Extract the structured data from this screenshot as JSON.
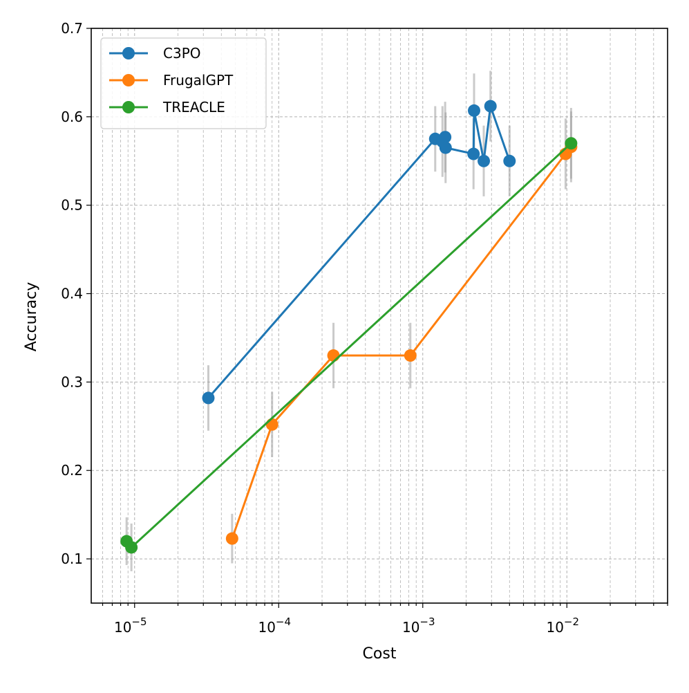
{
  "chart_data": {
    "type": "line",
    "title": "",
    "xlabel": "Cost",
    "ylabel": "Accuracy",
    "xscale": "log",
    "xlim": [
      5e-06,
      0.05
    ],
    "ylim": [
      0.05,
      0.7
    ],
    "grid": true,
    "legend_position": "top-left",
    "x_ticks": [
      {
        "value": 1e-05,
        "base": "10",
        "exp": "−5"
      },
      {
        "value": 0.0001,
        "base": "10",
        "exp": "−4"
      },
      {
        "value": 0.001,
        "base": "10",
        "exp": "−3"
      },
      {
        "value": 0.01,
        "base": "10",
        "exp": "−2"
      }
    ],
    "y_ticks": [
      {
        "value": 0.1,
        "label": "0.1"
      },
      {
        "value": 0.2,
        "label": "0.2"
      },
      {
        "value": 0.3,
        "label": "0.3"
      },
      {
        "value": 0.4,
        "label": "0.4"
      },
      {
        "value": 0.5,
        "label": "0.5"
      },
      {
        "value": 0.6,
        "label": "0.6"
      },
      {
        "value": 0.7,
        "label": "0.7"
      }
    ],
    "series": [
      {
        "name": "C3PO",
        "color": "#1f77b4",
        "points": [
          {
            "x": 3.25e-05,
            "y": 0.282,
            "err": 0.037
          },
          {
            "x": 0.00122,
            "y": 0.575,
            "err": 0.037
          },
          {
            "x": 0.00137,
            "y": 0.572,
            "err": 0.04
          },
          {
            "x": 0.00143,
            "y": 0.577,
            "err": 0.04
          },
          {
            "x": 0.00144,
            "y": 0.565,
            "err": 0.04
          },
          {
            "x": 0.00225,
            "y": 0.558,
            "err": 0.04
          },
          {
            "x": 0.00227,
            "y": 0.607,
            "err": 0.042
          },
          {
            "x": 0.00265,
            "y": 0.55,
            "err": 0.04
          },
          {
            "x": 0.00295,
            "y": 0.612,
            "err": 0.04
          },
          {
            "x": 0.004,
            "y": 0.55,
            "err": 0.04
          }
        ]
      },
      {
        "name": "FrugalGPT",
        "color": "#ff7f0e",
        "points": [
          {
            "x": 4.75e-05,
            "y": 0.123,
            "err": 0.028
          },
          {
            "x": 9e-05,
            "y": 0.252,
            "err": 0.037
          },
          {
            "x": 0.00024,
            "y": 0.33,
            "err": 0.037
          },
          {
            "x": 0.00082,
            "y": 0.33,
            "err": 0.037
          },
          {
            "x": 0.0098,
            "y": 0.558,
            "err": 0.04
          },
          {
            "x": 0.0107,
            "y": 0.566,
            "err": 0.04
          }
        ]
      },
      {
        "name": "TREACLE",
        "color": "#2ca02c",
        "points": [
          {
            "x": 8.8e-06,
            "y": 0.12,
            "err": 0.027
          },
          {
            "x": 9.5e-06,
            "y": 0.113,
            "err": 0.027
          },
          {
            "x": 0.0107,
            "y": 0.57,
            "err": 0.04
          }
        ]
      }
    ]
  }
}
